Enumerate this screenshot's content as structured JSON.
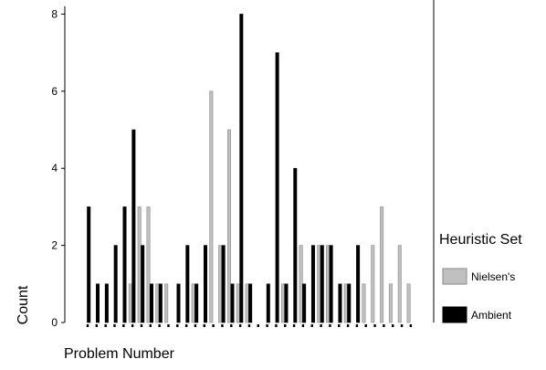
{
  "chart_data": {
    "type": "bar",
    "xlabel": "Problem Number",
    "ylabel": "Count",
    "ylim": [
      0,
      8.2
    ],
    "yticks": [
      0,
      2,
      4,
      6,
      8
    ],
    "grid": false,
    "legend": {
      "title": "Heuristic Set",
      "placement": "right"
    },
    "series": [
      {
        "name": "Nielsen's",
        "color": "#c0c0c0",
        "values": [
          0,
          0,
          0,
          0,
          0,
          1,
          3,
          3,
          1,
          1,
          0,
          0,
          1,
          0,
          6,
          2,
          5,
          1,
          1,
          0,
          0,
          0,
          1,
          0,
          2,
          0,
          2,
          2,
          0,
          1,
          0,
          1,
          2,
          3,
          1,
          2,
          1
        ]
      },
      {
        "name": "Ambient",
        "color": "#000000",
        "values": [
          3,
          1,
          1,
          2,
          3,
          5,
          2,
          1,
          1,
          0,
          1,
          2,
          1,
          2,
          0,
          2,
          1,
          8,
          1,
          0,
          1,
          7,
          1,
          4,
          1,
          2,
          2,
          2,
          1,
          1,
          2,
          0,
          0,
          0,
          0,
          0,
          0
        ]
      }
    ]
  }
}
